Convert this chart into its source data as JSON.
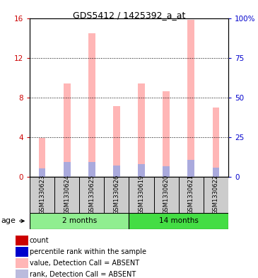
{
  "title": "GDS5412 / 1425392_a_at",
  "samples": [
    "GSM1330623",
    "GSM1330624",
    "GSM1330625",
    "GSM1330626",
    "GSM1330619",
    "GSM1330620",
    "GSM1330621",
    "GSM1330622"
  ],
  "groups": [
    {
      "label": "2 months",
      "indices": [
        0,
        1,
        2,
        3
      ],
      "color": "#90EE90"
    },
    {
      "label": "14 months",
      "indices": [
        4,
        5,
        6,
        7
      ],
      "color": "#44DD44"
    }
  ],
  "pink_values": [
    3.9,
    9.4,
    14.5,
    7.1,
    9.4,
    8.6,
    15.8,
    7.0
  ],
  "blue_values": [
    5.0,
    9.0,
    9.0,
    7.0,
    8.0,
    6.5,
    10.5,
    5.5
  ],
  "ylim_left": [
    0,
    16
  ],
  "ylim_right": [
    0,
    100
  ],
  "yticks_left": [
    0,
    4,
    8,
    12,
    16
  ],
  "yticks_right": [
    0,
    25,
    50,
    75,
    100
  ],
  "ytick_labels_right": [
    "0",
    "25",
    "50",
    "75",
    "100%"
  ],
  "pink_color": "#FFB6B6",
  "blue_color": "#AAAADD",
  "left_axis_color": "#CC0000",
  "right_axis_color": "#0000CC",
  "grid_color": "black",
  "background_color": "#FFFFFF",
  "sample_box_color": "#CCCCCC",
  "legend_items": [
    {
      "color": "#CC0000",
      "label": "count"
    },
    {
      "color": "#0000CC",
      "label": "percentile rank within the sample"
    },
    {
      "color": "#FFB6B6",
      "label": "value, Detection Call = ABSENT"
    },
    {
      "color": "#BBBBDD",
      "label": "rank, Detection Call = ABSENT"
    }
  ]
}
